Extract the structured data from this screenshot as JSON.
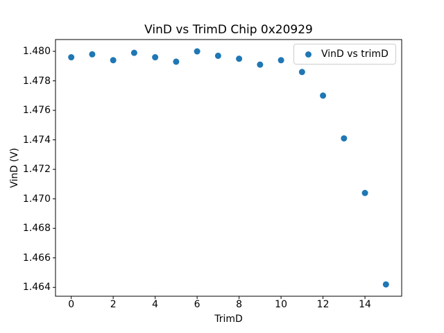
{
  "chart_data": {
    "type": "scatter",
    "title": "VinD vs TrimD Chip 0x20929",
    "xlabel": "TrimD",
    "ylabel": "VinD (V)",
    "legend_label": "VinD vs trimD",
    "legend_position": "upper right",
    "marker_color": "#1f77b4",
    "axis_color": "#000000",
    "grid": false,
    "x": [
      0,
      1,
      2,
      3,
      4,
      5,
      6,
      7,
      8,
      9,
      10,
      11,
      12,
      13,
      14,
      15
    ],
    "y": [
      1.4796,
      1.4798,
      1.4794,
      1.4799,
      1.4796,
      1.4793,
      1.48,
      1.4797,
      1.4795,
      1.4791,
      1.4794,
      1.4786,
      1.477,
      1.4741,
      1.4704,
      1.4642
    ],
    "xlim": [
      -0.75,
      15.75
    ],
    "ylim": [
      1.4634,
      1.4808
    ],
    "xticks": [
      0,
      2,
      4,
      6,
      8,
      10,
      12,
      14
    ],
    "yticks": [
      1.464,
      1.466,
      1.468,
      1.47,
      1.472,
      1.474,
      1.476,
      1.478,
      1.48
    ],
    "ytick_decimals": 3
  }
}
